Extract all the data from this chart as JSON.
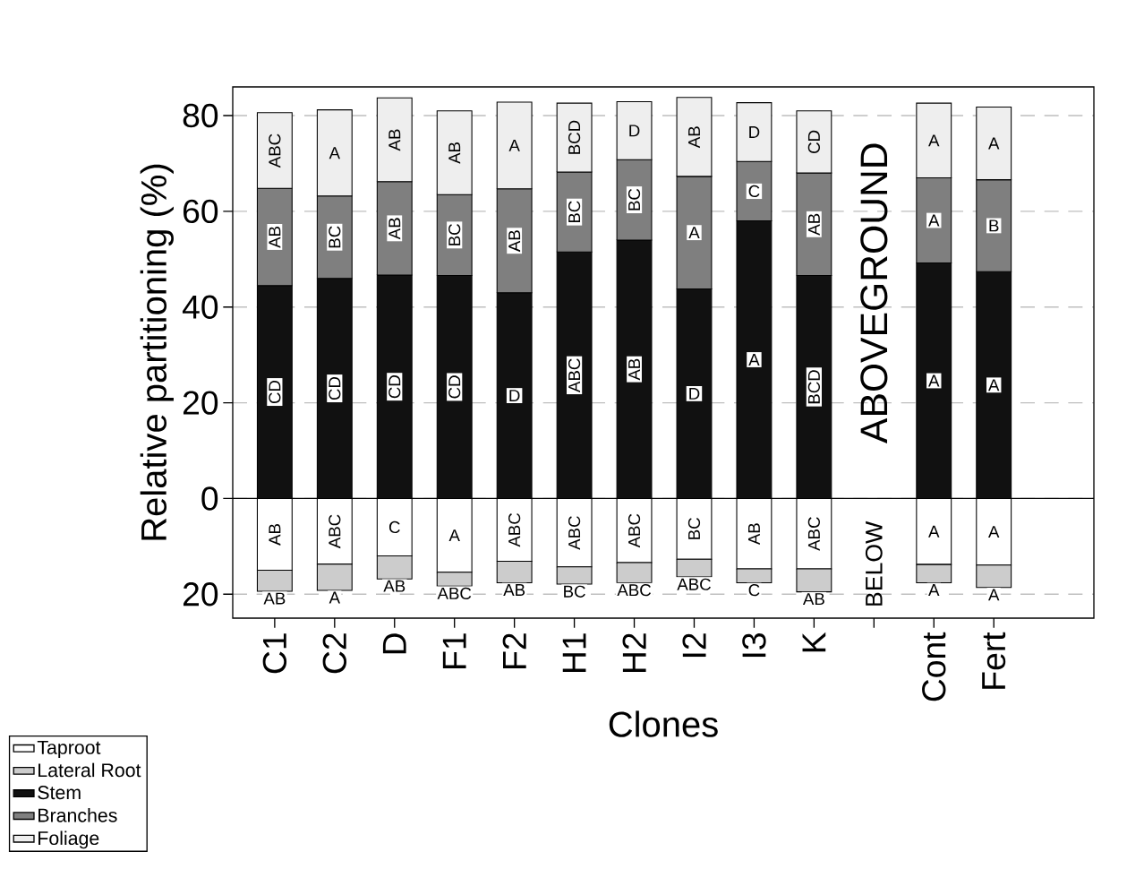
{
  "chart_data": {
    "type": "bar",
    "stacked": true,
    "xlabel": "Clones",
    "ylabel": "Relative partitioning (%)",
    "categories": [
      "C1",
      "C2",
      "D",
      "F1",
      "F2",
      "H1",
      "H2",
      "I2",
      "I3",
      "K",
      null,
      "Cont",
      "Fert"
    ],
    "series": [
      {
        "name": "Taproot",
        "color": "#ffffff",
        "values": [
          -15.0,
          -13.7,
          -12.0,
          -15.4,
          -13.1,
          -14.3,
          -13.4,
          -12.7,
          -14.7,
          -14.7,
          null,
          -13.8,
          -13.9
        ],
        "value_labels": [
          "AB",
          "ABC",
          "C",
          "A",
          "ABC",
          "ABC",
          "ABC",
          "BC",
          "AB",
          "ABC",
          null,
          "A",
          "A"
        ]
      },
      {
        "name": "Lateral Root",
        "color": "#cccccc",
        "values": [
          -4.4,
          -5.5,
          -4.8,
          -2.9,
          -4.5,
          -3.6,
          -4.2,
          -3.7,
          -2.9,
          -4.8,
          null,
          -3.8,
          -4.7
        ],
        "value_labels": [
          "AB",
          "A",
          "AB",
          "ABC",
          "AB",
          "BC",
          "ABC",
          "ABC",
          "C",
          "AB",
          null,
          "A",
          "A"
        ]
      },
      {
        "name": "Stem",
        "color": "#111111",
        "values": [
          44.5,
          46.0,
          46.7,
          46.6,
          43.0,
          51.5,
          54.0,
          43.8,
          58.0,
          46.6,
          null,
          49.2,
          47.4
        ],
        "value_labels": [
          "CD",
          "CD",
          "CD",
          "CD",
          "D",
          "ABC",
          "AB",
          "D",
          "A",
          "BCD",
          null,
          "A",
          "A"
        ]
      },
      {
        "name": "Branches",
        "color": "#7f7f7f",
        "values": [
          20.3,
          17.2,
          19.5,
          16.9,
          21.7,
          16.7,
          16.8,
          23.5,
          12.4,
          21.4,
          null,
          17.8,
          19.2
        ],
        "value_labels": [
          "AB",
          "BC",
          "AB",
          "BC",
          "AB",
          "BC",
          "BC",
          "A",
          "C",
          "AB",
          null,
          "A",
          "B"
        ]
      },
      {
        "name": "Foliage",
        "color": "#eeeeee",
        "values": [
          15.8,
          18.0,
          17.5,
          17.5,
          18.1,
          14.4,
          12.1,
          16.5,
          12.3,
          13.0,
          null,
          15.6,
          15.2
        ],
        "value_labels": [
          "ABC",
          "A",
          "AB",
          "AB",
          "A",
          "BCD",
          "D",
          "AB",
          "D",
          "CD",
          null,
          "A",
          "A"
        ]
      }
    ],
    "ylim": [
      -25,
      86
    ],
    "yticks": [
      {
        "value": -20,
        "label": "20"
      },
      0,
      20,
      40,
      60,
      80
    ],
    "grid": "y",
    "ref_lines": [
      {
        "axis": "y",
        "value": 0,
        "color": "#000000"
      }
    ],
    "legend": "bottom left",
    "annotations": [
      "ABOVEGROUND",
      "BELOW"
    ]
  }
}
